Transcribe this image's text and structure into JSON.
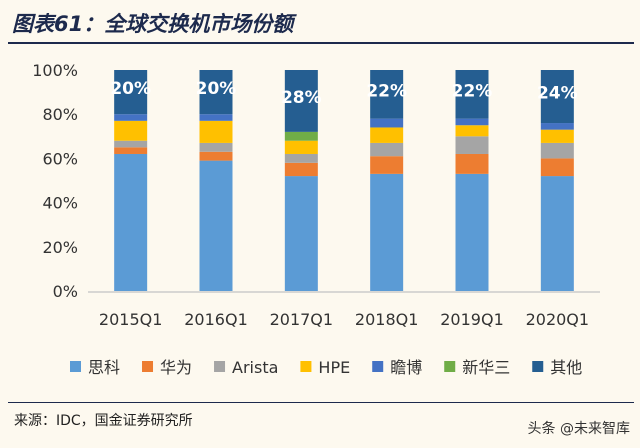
{
  "title": "图表61：全球交换机市场份额",
  "source": "来源：IDC，国金证券研究所",
  "watermark": "头条 @未来智库",
  "chart_data": {
    "type": "bar",
    "stacked": true,
    "categories": [
      "2015Q1",
      "2016Q1",
      "2017Q1",
      "2018Q1",
      "2019Q1",
      "2020Q1"
    ],
    "ylim": [
      0,
      100
    ],
    "yticks": [
      "0%",
      "20%",
      "40%",
      "60%",
      "80%",
      "100%"
    ],
    "legend_position": "bottom",
    "series": [
      {
        "name": "思科",
        "color": "#5b9bd5",
        "values": [
          62,
          59,
          52,
          53,
          53,
          52
        ]
      },
      {
        "name": "华为",
        "color": "#ed7d31",
        "values": [
          3,
          4,
          6,
          8,
          9,
          8
        ]
      },
      {
        "name": "Arista",
        "color": "#a5a5a5",
        "values": [
          3,
          4,
          4,
          6,
          8,
          7
        ]
      },
      {
        "name": "HPE",
        "color": "#ffc000",
        "values": [
          9,
          10,
          6,
          7,
          5,
          6
        ]
      },
      {
        "name": "瞻博",
        "color": "#4472c4",
        "values": [
          3,
          3,
          0,
          4,
          3,
          3
        ]
      },
      {
        "name": "新华三",
        "color": "#70ad47",
        "values": [
          0,
          0,
          4,
          0,
          0,
          0
        ]
      },
      {
        "name": "其他",
        "color": "#255e91",
        "values": [
          20,
          20,
          28,
          22,
          22,
          24
        ]
      }
    ],
    "data_labels": [
      "20%",
      "20%",
      "28%",
      "22%",
      "22%",
      "24%"
    ]
  }
}
